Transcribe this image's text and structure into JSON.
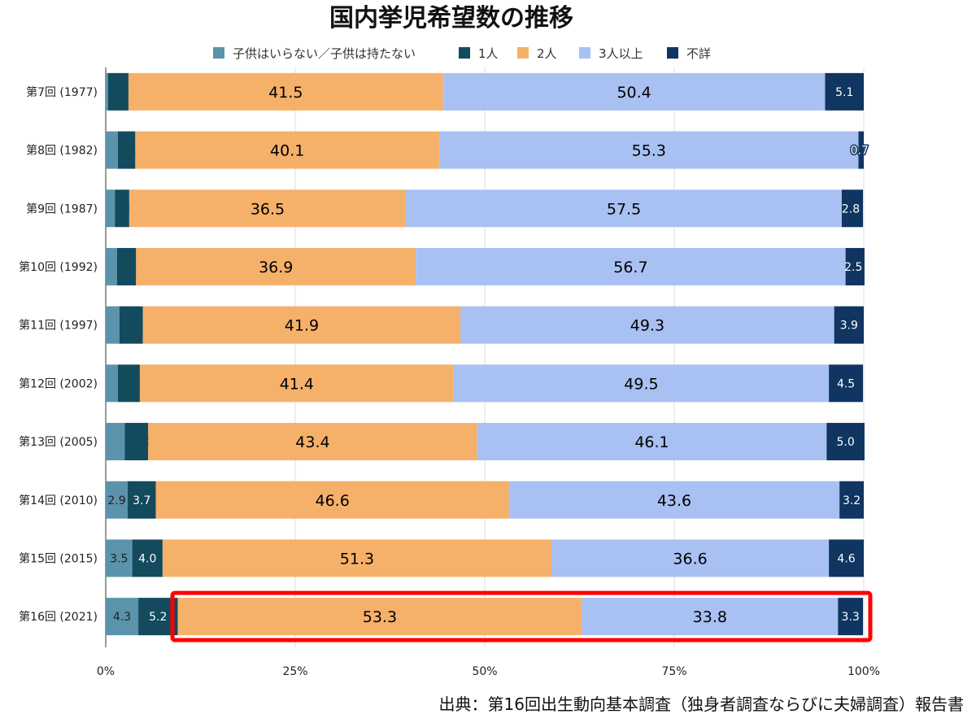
{
  "chart_data": {
    "type": "bar",
    "orientation": "horizontal",
    "stacked": "percent",
    "title": "国内挙児希望数の推移",
    "categories": [
      "第7回 (1977)",
      "第8回 (1982)",
      "第9回 (1987)",
      "第10回 (1992)",
      "第11回 (1997)",
      "第12回 (2002)",
      "第13回 (2005)",
      "第14回 (2010)",
      "第15回 (2015)",
      "第16回 (2021)"
    ],
    "series": [
      {
        "name": "子供はいらない／子供は持たない",
        "color": "#5b93ac",
        "values": [
          0.3,
          1.6,
          1.2,
          1.5,
          1.8,
          1.6,
          2.5,
          2.9,
          3.5,
          4.3
        ]
      },
      {
        "name": "1人",
        "color": "#134a5e",
        "values": [
          2.7,
          2.3,
          1.9,
          2.5,
          3.1,
          2.9,
          3.1,
          3.7,
          4.0,
          5.2
        ]
      },
      {
        "name": "2人",
        "color": "#f5b06a",
        "values": [
          41.5,
          40.1,
          36.5,
          36.9,
          41.9,
          41.4,
          43.4,
          46.6,
          51.3,
          53.3
        ]
      },
      {
        "name": "3人以上",
        "color": "#a9c0f2",
        "values": [
          50.4,
          55.3,
          57.5,
          56.7,
          49.3,
          49.5,
          46.1,
          43.6,
          36.6,
          33.8
        ]
      },
      {
        "name": "不詳",
        "color": "#0f3560",
        "values": [
          5.1,
          0.7,
          2.8,
          2.5,
          3.9,
          4.5,
          5.0,
          3.2,
          4.6,
          3.3
        ]
      }
    ],
    "xticks": [
      "0%",
      "25%",
      "50%",
      "75%",
      "100%"
    ],
    "xlim": [
      0,
      100
    ],
    "grid": "vertical",
    "legend": "top",
    "highlight": {
      "category": "第16回 (2021)",
      "color": "#ff0000"
    },
    "source": "出典：第16回出生動向基本調査（独身者調査ならびに夫婦調査）報告書"
  }
}
